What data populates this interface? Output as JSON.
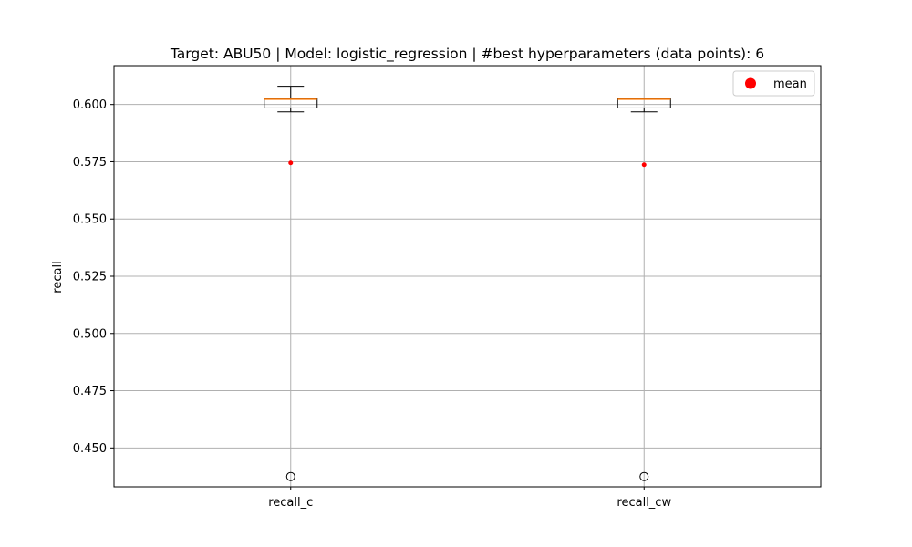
{
  "chart_data": {
    "type": "box",
    "title": "Target: ABU50 | Model: logistic_regression | #best hyperparameters (data points): 6",
    "xlabel": "",
    "ylabel": "recall",
    "ylim": [
      0.433,
      0.617
    ],
    "yticks": [
      0.45,
      0.475,
      0.5,
      0.525,
      0.55,
      0.575,
      0.6
    ],
    "ytick_labels": [
      "0.450",
      "0.475",
      "0.500",
      "0.525",
      "0.550",
      "0.575",
      "0.600"
    ],
    "grid": true,
    "categories": [
      "recall_c",
      "recall_cw"
    ],
    "boxes": [
      {
        "name": "recall_c",
        "whisker_low": 0.5968,
        "q1": 0.5985,
        "median": 0.6023,
        "q3": 0.6025,
        "whisker_high": 0.608,
        "mean": 0.5745,
        "outliers": [
          0.4375
        ]
      },
      {
        "name": "recall_cw",
        "whisker_low": 0.5968,
        "q1": 0.5985,
        "median": 0.6023,
        "q3": 0.6025,
        "whisker_high": 0.6025,
        "mean": 0.5737,
        "outliers": [
          0.4375
        ]
      }
    ],
    "legend": {
      "position": "top-right",
      "entries": [
        {
          "label": "mean",
          "color": "#ff0000"
        }
      ]
    },
    "colors": {
      "box": "#000000",
      "median": "#ff7f0e",
      "mean": "#ff0000",
      "grid": "#b0b0b0"
    }
  }
}
